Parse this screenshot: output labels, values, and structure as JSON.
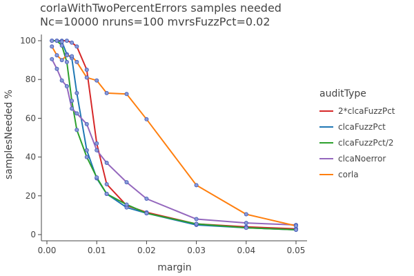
{
  "chart_data": {
    "type": "line",
    "title": "corlaWithTwoPercentErrors samples needed",
    "subtitle": "Nc=10000 nruns=100 mvrsFuzzPct=0.02",
    "xlabel": "margin",
    "ylabel": "samplesNeeded %",
    "xlim": [
      0,
      0.05
    ],
    "ylim": [
      0,
      100
    ],
    "xticks": [
      "0.00",
      "0.01",
      "0.02",
      "0.03",
      "0.04",
      "0.05"
    ],
    "yticks": [
      "0",
      "20",
      "40",
      "60",
      "80",
      "100"
    ],
    "grid": false,
    "legend_title": "auditType",
    "legend_position": "right",
    "series": [
      {
        "name": "2*clcaFuzzPct",
        "color": "#d62728",
        "points": [
          [
            0.001,
            100
          ],
          [
            0.002,
            100
          ],
          [
            0.003,
            100
          ],
          [
            0.004,
            100
          ],
          [
            0.005,
            99
          ],
          [
            0.006,
            97
          ],
          [
            0.008,
            85
          ],
          [
            0.01,
            47
          ],
          [
            0.012,
            26
          ],
          [
            0.016,
            15
          ],
          [
            0.02,
            11.5
          ],
          [
            0.03,
            5.5
          ],
          [
            0.04,
            4
          ],
          [
            0.05,
            3
          ]
        ]
      },
      {
        "name": "clcaFuzzPct",
        "color": "#1f77b4",
        "points": [
          [
            0.001,
            100
          ],
          [
            0.002,
            100
          ],
          [
            0.003,
            99.5
          ],
          [
            0.004,
            93
          ],
          [
            0.005,
            91
          ],
          [
            0.006,
            73
          ],
          [
            0.008,
            43.5
          ],
          [
            0.01,
            29
          ],
          [
            0.012,
            21
          ],
          [
            0.016,
            14
          ],
          [
            0.02,
            11
          ],
          [
            0.03,
            5
          ],
          [
            0.04,
            3.5
          ],
          [
            0.05,
            2.5
          ]
        ]
      },
      {
        "name": "clcaFuzzPct/2",
        "color": "#2ca02c",
        "points": [
          [
            0.001,
            100
          ],
          [
            0.002,
            100
          ],
          [
            0.003,
            97.5
          ],
          [
            0.004,
            89
          ],
          [
            0.005,
            69
          ],
          [
            0.006,
            54
          ],
          [
            0.008,
            40
          ],
          [
            0.01,
            29.5
          ],
          [
            0.012,
            21
          ],
          [
            0.016,
            15.5
          ],
          [
            0.02,
            11
          ],
          [
            0.03,
            5.5
          ],
          [
            0.04,
            3.5
          ],
          [
            0.05,
            2.5
          ]
        ]
      },
      {
        "name": "clcaNoerror",
        "color": "#9467bd",
        "points": [
          [
            0.001,
            90.5
          ],
          [
            0.002,
            85.5
          ],
          [
            0.003,
            79.5
          ],
          [
            0.004,
            76.5
          ],
          [
            0.005,
            65
          ],
          [
            0.006,
            62.5
          ],
          [
            0.008,
            57
          ],
          [
            0.01,
            43.5
          ],
          [
            0.012,
            37
          ],
          [
            0.016,
            27
          ],
          [
            0.02,
            18.5
          ],
          [
            0.03,
            8
          ],
          [
            0.04,
            6
          ],
          [
            0.05,
            5
          ]
        ]
      },
      {
        "name": "corla",
        "color": "#ff7f0e",
        "points": [
          [
            0.001,
            97
          ],
          [
            0.002,
            92.5
          ],
          [
            0.003,
            90
          ],
          [
            0.004,
            92.5
          ],
          [
            0.005,
            92
          ],
          [
            0.006,
            89
          ],
          [
            0.008,
            81
          ],
          [
            0.01,
            79.5
          ],
          [
            0.012,
            73
          ],
          [
            0.016,
            72.5
          ],
          [
            0.02,
            59.5
          ],
          [
            0.03,
            25.5
          ],
          [
            0.04,
            10.5
          ],
          [
            0.05,
            4.5
          ]
        ]
      }
    ]
  }
}
